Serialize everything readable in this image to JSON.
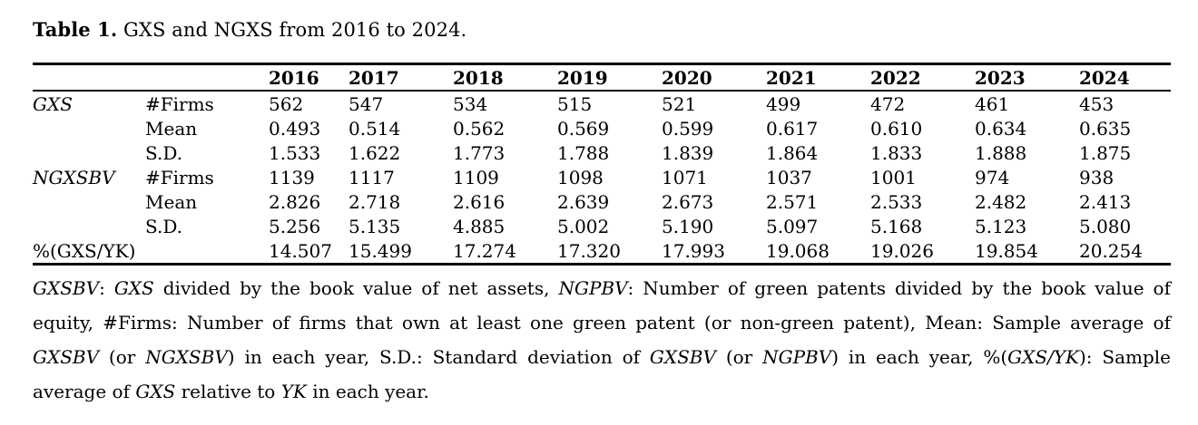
{
  "colors": {
    "background": "#ffffff",
    "text": "#000000",
    "rule": "#000000"
  },
  "title": {
    "bold": "Table 1.",
    "rest": " GXS and NGXS from 2016 to 2024."
  },
  "table": {
    "years": [
      "2016",
      "2017",
      "2018",
      "2019",
      "2020",
      "2021",
      "2022",
      "2023",
      "2024"
    ],
    "rows": [
      {
        "group": "GXS",
        "group_italic": true,
        "stat": "#Firms",
        "values": [
          "562",
          "547",
          "534",
          "515",
          "521",
          "499",
          "472",
          "461",
          "453"
        ]
      },
      {
        "group": "",
        "group_italic": false,
        "stat": "Mean",
        "values": [
          "0.493",
          "0.514",
          "0.562",
          "0.569",
          "0.599",
          "0.617",
          "0.610",
          "0.634",
          "0.635"
        ]
      },
      {
        "group": "",
        "group_italic": false,
        "stat": "S.D.",
        "values": [
          "1.533",
          "1.622",
          "1.773",
          "1.788",
          "1.839",
          "1.864",
          "1.833",
          "1.888",
          "1.875"
        ]
      },
      {
        "group": "NGXSBV",
        "group_italic": true,
        "stat": "#Firms",
        "values": [
          "1139",
          "1117",
          "1109",
          "1098",
          "1071",
          "1037",
          "1001",
          "974",
          "938"
        ]
      },
      {
        "group": "",
        "group_italic": false,
        "stat": "Mean",
        "values": [
          "2.826",
          "2.718",
          "2.616",
          "2.639",
          "2.673",
          "2.571",
          "2.533",
          "2.482",
          "2.413"
        ]
      },
      {
        "group": "",
        "group_italic": false,
        "stat": "S.D.",
        "values": [
          "5.256",
          "5.135",
          "4.885",
          "5.002",
          "5.190",
          "5.097",
          "5.168",
          "5.123",
          "5.080"
        ]
      },
      {
        "group": "%(GXS/YK)",
        "group_italic": false,
        "stat": "",
        "values": [
          "14.507",
          "15.499",
          "17.274",
          "17.320",
          "17.993",
          "19.068",
          "19.026",
          "19.854",
          "20.254"
        ]
      }
    ]
  },
  "footnote": {
    "lines": [
      [
        {
          "t": "GXSBV",
          "i": true
        },
        {
          "t": ": "
        },
        {
          "t": "GXS",
          "i": true
        },
        {
          "t": " divided by the book value of net assets, "
        },
        {
          "t": "NGPBV",
          "i": true
        },
        {
          "t": ": Number of green patents divided by the book value of"
        }
      ],
      [
        {
          "t": "equity, #Firms: Number of firms that own at least one green patent (or non-green patent), Mean: Sample average of"
        }
      ],
      [
        {
          "t": "GXSBV",
          "i": true
        },
        {
          "t": " (or "
        },
        {
          "t": "NGXSBV",
          "i": true
        },
        {
          "t": ") in each year, S.D.: Standard deviation of "
        },
        {
          "t": "GXSBV",
          "i": true
        },
        {
          "t": " (or "
        },
        {
          "t": "NGPBV",
          "i": true
        },
        {
          "t": ") in each year, %("
        },
        {
          "t": "GXS/YK",
          "i": true
        },
        {
          "t": "): Sample"
        }
      ],
      [
        {
          "t": "average of "
        },
        {
          "t": "GXS",
          "i": true
        },
        {
          "t": " relative to "
        },
        {
          "t": "YK",
          "i": true
        },
        {
          "t": " in each year."
        }
      ]
    ]
  }
}
